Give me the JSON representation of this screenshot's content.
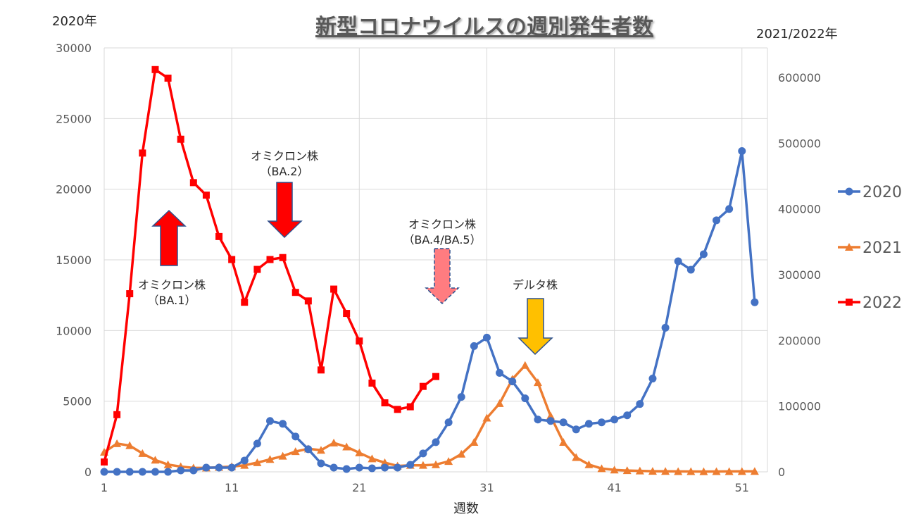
{
  "chart_data": {
    "type": "line",
    "title": "新型コロナウイルスの週別発生者数",
    "xlabel": "週数",
    "y_left_label": "2020年",
    "y_right_label": "2021/2022年",
    "x_ticks": [
      1,
      11,
      21,
      31,
      41,
      51
    ],
    "y_left_ticks": [
      0,
      5000,
      10000,
      15000,
      20000,
      25000,
      30000
    ],
    "y_right_ticks": [
      0,
      100000,
      200000,
      300000,
      400000,
      500000,
      600000
    ],
    "xlim": [
      1,
      53
    ],
    "ylim_left": [
      0,
      30000
    ],
    "ylim_right": [
      0,
      645000
    ],
    "gridlines": true,
    "legend_position": "right",
    "series": [
      {
        "name": "2020",
        "axis": "left",
        "color": "#4472C4",
        "marker": "circle",
        "x": [
          1,
          2,
          3,
          4,
          5,
          6,
          7,
          8,
          9,
          10,
          11,
          12,
          13,
          14,
          15,
          16,
          17,
          18,
          19,
          20,
          21,
          22,
          23,
          24,
          25,
          26,
          27,
          28,
          29,
          30,
          31,
          32,
          33,
          34,
          35,
          36,
          37,
          38,
          39,
          40,
          41,
          42,
          43,
          44,
          45,
          46,
          47,
          48,
          49,
          50,
          51,
          52
        ],
        "values": [
          0,
          0,
          0,
          0,
          0,
          0,
          100,
          100,
          300,
          300,
          300,
          800,
          2000,
          3600,
          3400,
          2500,
          1600,
          600,
          300,
          200,
          300,
          250,
          300,
          300,
          500,
          1300,
          2100,
          3500,
          5300,
          8900,
          9500,
          7000,
          6400,
          5200,
          3700,
          3600,
          3500,
          3000,
          3400,
          3500,
          3700,
          4000,
          4800,
          6600,
          10200,
          14900,
          14300,
          15400,
          17800,
          18600,
          22700,
          12000
        ]
      },
      {
        "name": "2021",
        "axis": "right",
        "color": "#ED7D31",
        "marker": "triangle",
        "x": [
          1,
          2,
          3,
          4,
          5,
          6,
          7,
          8,
          9,
          10,
          11,
          12,
          13,
          14,
          15,
          16,
          17,
          18,
          19,
          20,
          21,
          22,
          23,
          24,
          25,
          26,
          27,
          28,
          29,
          30,
          31,
          32,
          33,
          34,
          35,
          36,
          37,
          38,
          39,
          40,
          41,
          42,
          43,
          44,
          45,
          46,
          47,
          48,
          49,
          50,
          51,
          52
        ],
        "values": [
          30000,
          43000,
          40000,
          28000,
          18000,
          11000,
          8000,
          6000,
          6000,
          7000,
          8000,
          10000,
          14000,
          19000,
          24000,
          31000,
          35000,
          33000,
          44000,
          38000,
          29000,
          20000,
          14000,
          9000,
          10000,
          10000,
          11000,
          16000,
          27000,
          45000,
          82000,
          104000,
          141000,
          162000,
          136000,
          85000,
          45000,
          22000,
          11000,
          5000,
          3000,
          2000,
          1500,
          1000,
          800,
          600,
          500,
          400,
          500,
          600,
          700,
          800
        ]
      },
      {
        "name": "2022",
        "axis": "right",
        "color": "#FF0000",
        "marker": "square",
        "x": [
          1,
          2,
          3,
          4,
          5,
          6,
          7,
          8,
          9,
          10,
          11,
          12,
          13,
          14,
          15,
          16,
          17,
          18,
          19,
          20,
          21,
          22,
          23,
          24,
          25,
          26,
          27
        ],
        "values": [
          15000,
          87000,
          271000,
          485000,
          612000,
          599000,
          506000,
          440000,
          421000,
          358000,
          323000,
          258000,
          308000,
          323000,
          326000,
          273000,
          260000,
          155000,
          278000,
          241000,
          199000,
          135000,
          105000,
          95000,
          99000,
          130000,
          145000
        ]
      }
    ],
    "annotations": [
      {
        "lines": [
          "オミクロン株",
          "（BA.1）"
        ],
        "arrow": "up",
        "arrow_color": "#FF0000"
      },
      {
        "lines": [
          "オミクロン株",
          "（BA.2）"
        ],
        "arrow": "down",
        "arrow_color": "#FF0000"
      },
      {
        "lines": [
          "オミクロン株",
          "（BA.4/BA.5）"
        ],
        "arrow": "down-dashed",
        "arrow_color": "#FF7C80"
      },
      {
        "lines": [
          "デルタ株"
        ],
        "arrow": "down",
        "arrow_color": "#FFC000"
      }
    ]
  }
}
